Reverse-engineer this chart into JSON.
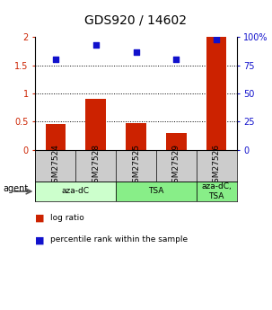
{
  "title": "GDS920 / 14602",
  "categories": [
    "GSM27524",
    "GSM27528",
    "GSM27525",
    "GSM27529",
    "GSM27526"
  ],
  "bar_values": [
    0.45,
    0.9,
    0.48,
    0.3,
    2.0
  ],
  "scatter_values": [
    80,
    93,
    87,
    80,
    98
  ],
  "ylim_left": [
    0,
    2
  ],
  "ylim_right": [
    0,
    100
  ],
  "yticks_left": [
    0,
    0.5,
    1.0,
    1.5,
    2.0
  ],
  "ytick_labels_left": [
    "0",
    "0.5",
    "1",
    "1.5",
    "2"
  ],
  "yticks_right": [
    0,
    25,
    50,
    75,
    100
  ],
  "ytick_labels_right": [
    "0",
    "25",
    "50",
    "75",
    "100%"
  ],
  "hlines": [
    0.5,
    1.0,
    1.5
  ],
  "bar_color": "#cc2200",
  "scatter_color": "#1111cc",
  "agent_groups": [
    {
      "label": "aza-dC",
      "cols": [
        0,
        1
      ],
      "color": "#ccffcc"
    },
    {
      "label": "TSA",
      "cols": [
        2,
        3
      ],
      "color": "#88ee88"
    },
    {
      "label": "aza-dC,\nTSA",
      "cols": [
        4
      ],
      "color": "#88ee88"
    }
  ],
  "agent_label": "agent",
  "legend_bar_label": "log ratio",
  "legend_scatter_label": "percentile rank within the sample",
  "background_color": "#ffffff",
  "sample_row_color": "#cccccc",
  "title_fontsize": 10,
  "tick_fontsize": 7,
  "label_fontsize": 6.5,
  "bar_width": 0.5
}
